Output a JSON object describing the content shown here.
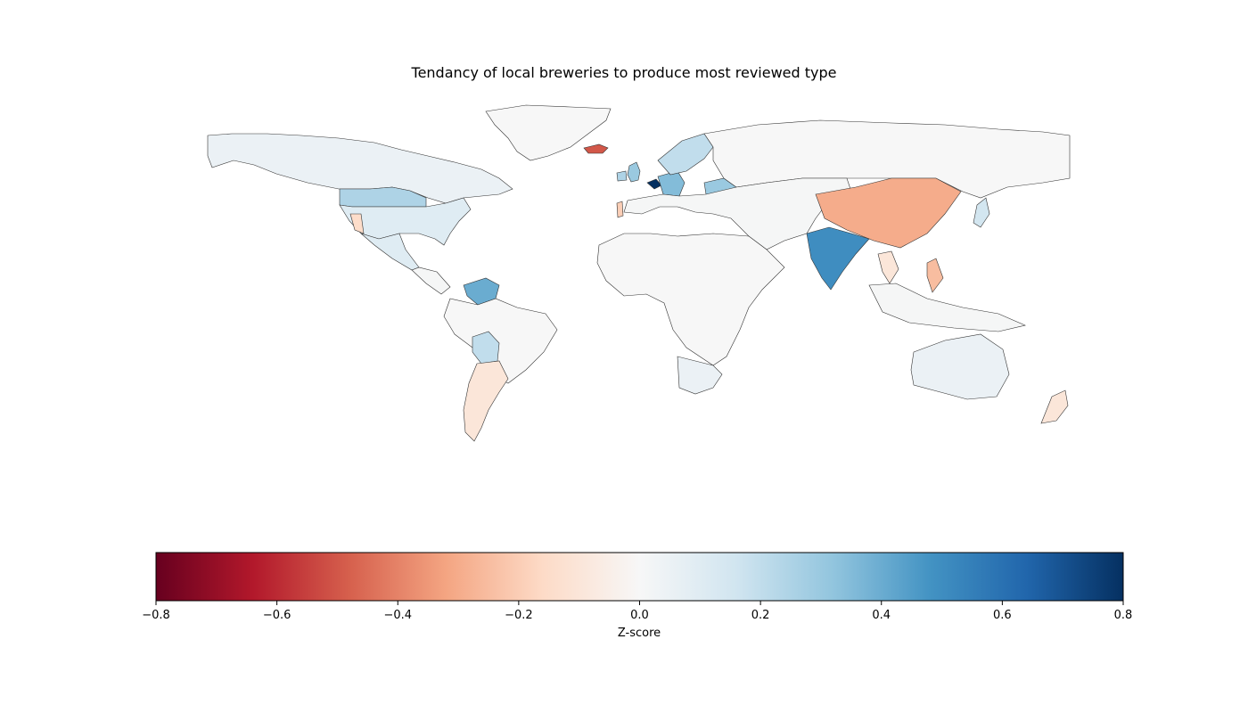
{
  "chart_data": {
    "type": "choropleth",
    "title": "Tendancy of local breweries to produce most reviewed type",
    "colormap": "RdBu",
    "colorbar": {
      "label": "Z-score",
      "range": [
        -0.8,
        0.8
      ],
      "ticks": [
        -0.8,
        -0.6,
        -0.4,
        -0.2,
        0.0,
        0.2,
        0.4,
        0.6,
        0.8
      ],
      "tick_labels": [
        "−0.8",
        "−0.6",
        "−0.4",
        "−0.2",
        "0.0",
        "0.2",
        "0.4",
        "0.6",
        "0.8"
      ],
      "placement": "bottom"
    },
    "regions": [
      {
        "name": "Canada",
        "value": 0.05
      },
      {
        "name": "USA northern states",
        "value": 0.25
      },
      {
        "name": "USA (most states)",
        "value": 0.1
      },
      {
        "name": "Nevada",
        "value": -0.15
      },
      {
        "name": "Mexico",
        "value": 0.1
      },
      {
        "name": "Greenland",
        "value": 0.0
      },
      {
        "name": "Iceland",
        "value": -0.5
      },
      {
        "name": "United Kingdom",
        "value": 0.3
      },
      {
        "name": "Ireland",
        "value": 0.25
      },
      {
        "name": "Belgium",
        "value": 0.8
      },
      {
        "name": "Germany",
        "value": 0.35
      },
      {
        "name": "Scandinavia",
        "value": 0.2
      },
      {
        "name": "Ukraine",
        "value": 0.3
      },
      {
        "name": "Portugal",
        "value": -0.2
      },
      {
        "name": "Russia",
        "value": 0.0
      },
      {
        "name": "China",
        "value": -0.3
      },
      {
        "name": "India",
        "value": 0.5
      },
      {
        "name": "Japan",
        "value": 0.15
      },
      {
        "name": "Philippines",
        "value": -0.25
      },
      {
        "name": "Vietnam",
        "value": -0.1
      },
      {
        "name": "Venezuela",
        "value": 0.4
      },
      {
        "name": "Bolivia",
        "value": 0.2
      },
      {
        "name": "Argentina",
        "value": -0.1
      },
      {
        "name": "Brazil",
        "value": 0.0
      },
      {
        "name": "Africa",
        "value": 0.0
      },
      {
        "name": "South Africa",
        "value": 0.05
      },
      {
        "name": "Australia",
        "value": 0.05
      },
      {
        "name": "New Zealand",
        "value": -0.1
      }
    ]
  }
}
